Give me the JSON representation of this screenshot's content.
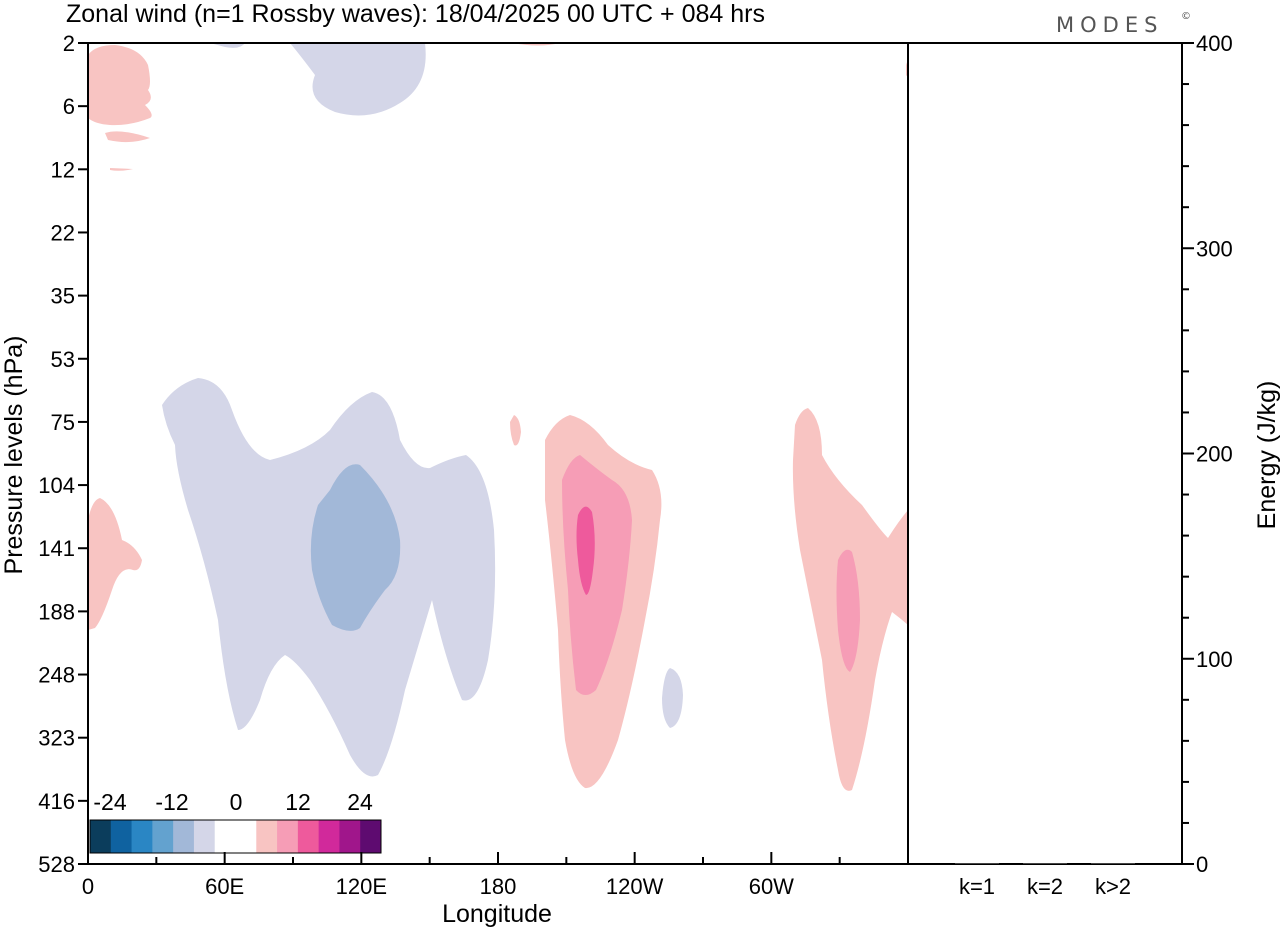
{
  "title": "Zonal wind (n=1 Rossby waves):  18/04/2025  00 UTC  + 084 hrs",
  "brand": "MODES",
  "brand_mark": "©",
  "colors": {
    "neg_light": "#d4d6e8",
    "neg_mid": "#a2b8d8",
    "pos_light": "#f8c4c2",
    "pos_mid": "#f69db6",
    "pos_strong": "#ee5a9c",
    "axis": "#000000"
  },
  "chart_data": [
    {
      "type": "heatmap",
      "subtype": "filled-contour",
      "title": "Zonal wind (n=1 Rossby waves):  18/04/2025  00 UTC  + 084 hrs",
      "xlabel": "Longitude",
      "ylabel": "Pressure levels (hPa)",
      "x_ticks": [
        "0",
        "60E",
        "120E",
        "180",
        "120W",
        "60W"
      ],
      "y_ticks": [
        "2",
        "6",
        "12",
        "22",
        "35",
        "53",
        "75",
        "104",
        "141",
        "188",
        "248",
        "323",
        "416",
        "528"
      ],
      "xlim": [
        "0",
        "360"
      ],
      "ylim": [
        528,
        2
      ],
      "grid": false,
      "colorbar": {
        "labels": [
          "-24",
          "-12",
          "0",
          "12",
          "24"
        ],
        "colors": [
          "#0b3d5c",
          "#0f62a0",
          "#2a86c4",
          "#63a2cf",
          "#a2b8d8",
          "#d4d6e8",
          "#ffffff",
          "#ffffff",
          "#f8c4c2",
          "#f69db6",
          "#ee5a9c",
          "#d1299b",
          "#a0168b",
          "#5e0b70"
        ],
        "placement": "bottom-left"
      },
      "features": [
        {
          "sign": "negative",
          "level": "weak",
          "lon_range": [
            60,
            160
          ],
          "levels_range_hPa": [
            2,
            6
          ]
        },
        {
          "sign": "negative",
          "level": "weak",
          "lon_range": [
            30,
            180
          ],
          "levels_range_hPa": [
            55,
            400
          ]
        },
        {
          "sign": "negative",
          "level": "moderate",
          "center_lon": 118,
          "center_hPa": 141
        },
        {
          "sign": "positive",
          "level": "weak",
          "lon_range": [
            200,
            250
          ],
          "levels_range_hPa": [
            75,
            430
          ]
        },
        {
          "sign": "positive",
          "level": "moderate",
          "center_lon": 218,
          "center_hPa": 150
        },
        {
          "sign": "positive",
          "level": "strong",
          "center_lon": 218,
          "center_hPa": 141
        },
        {
          "sign": "positive",
          "level": "weak",
          "lon_range": [
            310,
            360
          ],
          "levels_range_hPa": [
            75,
            430
          ]
        },
        {
          "sign": "positive",
          "level": "moderate",
          "center_lon": 333,
          "center_hPa": 200
        },
        {
          "sign": "positive",
          "level": "weak",
          "lon_range": [
            0,
            30
          ],
          "levels_range_hPa": [
            2,
            12
          ]
        },
        {
          "sign": "positive",
          "level": "weak",
          "lon_range": [
            0,
            20
          ],
          "levels_range_hPa": [
            104,
            188
          ]
        }
      ]
    },
    {
      "type": "bar",
      "title": "",
      "xlabel": "",
      "ylabel": "Energy (J/kg)",
      "categories": [
        "k=1",
        "k=2",
        "k>2"
      ],
      "values": [
        0,
        0,
        0
      ],
      "ylim": [
        0,
        400
      ],
      "y_ticks": [
        "0",
        "100",
        "200",
        "300",
        "400"
      ]
    }
  ]
}
